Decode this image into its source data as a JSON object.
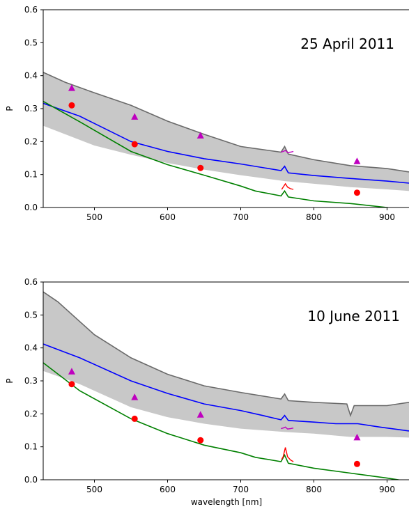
{
  "chart_data": [
    {
      "type": "line",
      "annotation": "25 April 2011",
      "ylabel": "P",
      "xlabel": "",
      "xlim": [
        430,
        930
      ],
      "ylim": [
        0.0,
        0.6
      ],
      "xticks": [
        "500",
        "600",
        "700",
        "800",
        "900"
      ],
      "yticks": [
        "0.0",
        "0.1",
        "0.2",
        "0.3",
        "0.4",
        "0.5",
        "0.6"
      ],
      "band": {
        "color": "#c8c8c8",
        "upper_color": "#6a6a6a",
        "upper": [
          [
            430,
            0.41
          ],
          [
            460,
            0.38
          ],
          [
            500,
            0.348
          ],
          [
            550,
            0.31
          ],
          [
            600,
            0.262
          ],
          [
            650,
            0.222
          ],
          [
            700,
            0.185
          ],
          [
            755,
            0.168
          ],
          [
            760,
            0.185
          ],
          [
            765,
            0.162
          ],
          [
            800,
            0.145
          ],
          [
            850,
            0.127
          ],
          [
            900,
            0.118
          ],
          [
            930,
            0.108
          ]
        ],
        "lower": [
          [
            430,
            0.248
          ],
          [
            500,
            0.188
          ],
          [
            550,
            0.16
          ],
          [
            600,
            0.135
          ],
          [
            650,
            0.115
          ],
          [
            700,
            0.098
          ],
          [
            760,
            0.08
          ],
          [
            800,
            0.072
          ],
          [
            850,
            0.062
          ],
          [
            900,
            0.055
          ],
          [
            930,
            0.05
          ]
        ]
      },
      "series": [
        {
          "color": "#0000ff",
          "points": [
            [
              430,
              0.316
            ],
            [
              480,
              0.277
            ],
            [
              550,
              0.2
            ],
            [
              600,
              0.17
            ],
            [
              650,
              0.148
            ],
            [
              700,
              0.132
            ],
            [
              755,
              0.112
            ],
            [
              760,
              0.125
            ],
            [
              765,
              0.105
            ],
            [
              800,
              0.097
            ],
            [
              850,
              0.088
            ],
            [
              900,
              0.08
            ],
            [
              930,
              0.074
            ]
          ]
        },
        {
          "color": "#008000",
          "points": [
            [
              430,
              0.322
            ],
            [
              480,
              0.26
            ],
            [
              550,
              0.17
            ],
            [
              600,
              0.13
            ],
            [
              650,
              0.098
            ],
            [
              700,
              0.065
            ],
            [
              720,
              0.05
            ],
            [
              755,
              0.035
            ],
            [
              760,
              0.05
            ],
            [
              765,
              0.032
            ],
            [
              800,
              0.02
            ],
            [
              850,
              0.012
            ],
            [
              900,
              0.0
            ],
            [
              930,
              -0.01
            ]
          ]
        }
      ],
      "markers": {
        "triangles": {
          "color": "#bf00bf",
          "points": [
            [
              469,
              0.362
            ],
            [
              555,
              0.275
            ],
            [
              645,
              0.218
            ],
            [
              859,
              0.14
            ]
          ]
        },
        "circles": {
          "color": "#ff0000",
          "points": [
            [
              469,
              0.31
            ],
            [
              555,
              0.192
            ],
            [
              645,
              0.12
            ],
            [
              859,
              0.045
            ]
          ]
        }
      },
      "oxygen_band_lines": [
        {
          "color": "#bf00bf",
          "points": [
            [
              755,
              0.168
            ],
            [
              758,
              0.17
            ],
            [
              761,
              0.173
            ],
            [
              764,
              0.167
            ],
            [
              768,
              0.168
            ],
            [
              772,
              0.17
            ]
          ]
        },
        {
          "color": "#ff0000",
          "points": [
            [
              756,
              0.055
            ],
            [
              758,
              0.062
            ],
            [
              761,
              0.072
            ],
            [
              764,
              0.062
            ],
            [
              768,
              0.057
            ],
            [
              772,
              0.055
            ]
          ]
        }
      ]
    },
    {
      "type": "line",
      "annotation": "10 June 2011",
      "ylabel": "P",
      "xlabel": "wavelength [nm]",
      "xlim": [
        430,
        930
      ],
      "ylim": [
        0.0,
        0.6
      ],
      "xticks": [
        "500",
        "600",
        "700",
        "800",
        "900"
      ],
      "yticks": [
        "0.0",
        "0.1",
        "0.2",
        "0.3",
        "0.4",
        "0.5",
        "0.6"
      ],
      "band": {
        "color": "#c8c8c8",
        "upper_color": "#6a6a6a",
        "upper": [
          [
            430,
            0.57
          ],
          [
            450,
            0.54
          ],
          [
            480,
            0.48
          ],
          [
            500,
            0.44
          ],
          [
            550,
            0.37
          ],
          [
            600,
            0.32
          ],
          [
            650,
            0.285
          ],
          [
            700,
            0.265
          ],
          [
            755,
            0.245
          ],
          [
            760,
            0.26
          ],
          [
            765,
            0.24
          ],
          [
            800,
            0.235
          ],
          [
            845,
            0.23
          ],
          [
            850,
            0.195
          ],
          [
            855,
            0.225
          ],
          [
            900,
            0.225
          ],
          [
            930,
            0.235
          ]
        ],
        "lower": [
          [
            430,
            0.33
          ],
          [
            480,
            0.29
          ],
          [
            550,
            0.22
          ],
          [
            600,
            0.19
          ],
          [
            650,
            0.17
          ],
          [
            700,
            0.155
          ],
          [
            760,
            0.145
          ],
          [
            800,
            0.14
          ],
          [
            850,
            0.13
          ],
          [
            900,
            0.13
          ],
          [
            930,
            0.128
          ]
        ]
      },
      "series": [
        {
          "color": "#0000ff",
          "points": [
            [
              430,
              0.412
            ],
            [
              480,
              0.37
            ],
            [
              550,
              0.3
            ],
            [
              600,
              0.262
            ],
            [
              650,
              0.23
            ],
            [
              700,
              0.21
            ],
            [
              730,
              0.195
            ],
            [
              755,
              0.182
            ],
            [
              760,
              0.195
            ],
            [
              765,
              0.18
            ],
            [
              800,
              0.175
            ],
            [
              830,
              0.17
            ],
            [
              860,
              0.17
            ],
            [
              890,
              0.16
            ],
            [
              930,
              0.148
            ]
          ]
        },
        {
          "color": "#008000",
          "points": [
            [
              430,
              0.355
            ],
            [
              480,
              0.27
            ],
            [
              550,
              0.185
            ],
            [
              600,
              0.14
            ],
            [
              650,
              0.105
            ],
            [
              700,
              0.082
            ],
            [
              720,
              0.068
            ],
            [
              755,
              0.055
            ],
            [
              760,
              0.075
            ],
            [
              765,
              0.05
            ],
            [
              800,
              0.035
            ],
            [
              850,
              0.02
            ],
            [
              900,
              0.005
            ],
            [
              930,
              -0.005
            ]
          ]
        }
      ],
      "markers": {
        "triangles": {
          "color": "#bf00bf",
          "points": [
            [
              469,
              0.328
            ],
            [
              555,
              0.25
            ],
            [
              645,
              0.197
            ],
            [
              859,
              0.128
            ]
          ]
        },
        "circles": {
          "color": "#ff0000",
          "points": [
            [
              469,
              0.29
            ],
            [
              555,
              0.185
            ],
            [
              645,
              0.12
            ],
            [
              859,
              0.048
            ]
          ]
        }
      },
      "oxygen_band_lines": [
        {
          "color": "#bf00bf",
          "points": [
            [
              755,
              0.155
            ],
            [
              758,
              0.157
            ],
            [
              761,
              0.16
            ],
            [
              764,
              0.154
            ],
            [
              768,
              0.155
            ],
            [
              772,
              0.157
            ]
          ]
        },
        {
          "color": "#ff0000",
          "points": [
            [
              756,
              0.062
            ],
            [
              758,
              0.07
            ],
            [
              761,
              0.098
            ],
            [
              764,
              0.07
            ],
            [
              768,
              0.06
            ],
            [
              772,
              0.055
            ]
          ]
        }
      ]
    }
  ]
}
